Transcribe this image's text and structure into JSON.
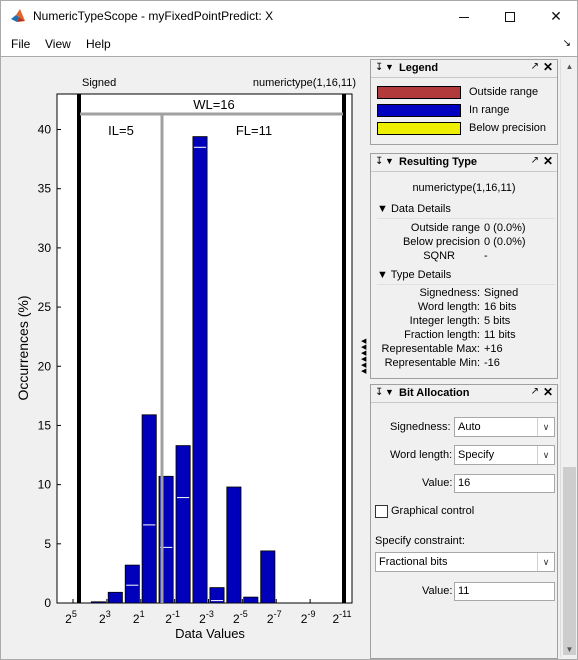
{
  "window": {
    "title": "NumericTypeScope - myFixedPointPredict: X",
    "min_icon": "minimize-icon",
    "max_icon": "maximize-icon",
    "close_glyph": "✕"
  },
  "menu": {
    "file": "File",
    "view": "View",
    "help": "Help"
  },
  "plot": {
    "signed_label": "Signed",
    "type_label": "numerictype(1,16,11)",
    "wl_label": "WL=16",
    "il_label": "IL=5",
    "fl_label": "FL=11",
    "xlabel": "Data Values",
    "ylabel": "Occurrences (%)"
  },
  "chart_data": {
    "type": "bar",
    "xlabel": "Data Values",
    "ylabel": "Occurrences (%)",
    "ylim": [
      0,
      43
    ],
    "yticks": [
      0,
      5,
      10,
      15,
      20,
      25,
      30,
      35,
      40
    ],
    "xtick_labels": [
      {
        "base": "2",
        "exp": "5"
      },
      {
        "base": "2",
        "exp": "3"
      },
      {
        "base": "2",
        "exp": "1"
      },
      {
        "base": "2",
        "exp": "-1"
      },
      {
        "base": "2",
        "exp": "-3"
      },
      {
        "base": "2",
        "exp": "-5"
      },
      {
        "base": "2",
        "exp": "-7"
      },
      {
        "base": "2",
        "exp": "-9"
      },
      {
        "base": "2",
        "exp": "-11"
      }
    ],
    "bin_exponents": [
      4,
      3,
      2,
      1,
      0,
      -1,
      -2,
      -3,
      -4,
      -5,
      -6,
      -7,
      -8,
      -9,
      -10,
      -11
    ],
    "values": [
      0,
      0.1,
      0.9,
      3.2,
      15.9,
      10.7,
      13.3,
      39.4,
      1.3,
      9.8,
      0.5,
      4.4,
      0,
      0,
      0,
      0
    ],
    "inner_marks": [
      null,
      null,
      null,
      1.5,
      6.6,
      4.7,
      8.9,
      38.5,
      0.2,
      null,
      null,
      null,
      null,
      null,
      null,
      null
    ],
    "colors": {
      "in_range": "#0000bb",
      "outside_range": "#b33a3a",
      "below_precision": "#eeee00"
    }
  },
  "legend": {
    "title": "Legend",
    "items": [
      {
        "label": "Outside range",
        "color": "#b33a3a"
      },
      {
        "label": "In range",
        "color": "#0000c0"
      },
      {
        "label": "Below precision",
        "color": "#eeee00"
      }
    ]
  },
  "resulting_type": {
    "title": "Resulting Type",
    "summary": "numerictype(1,16,11)",
    "data_details_title": "Data Details",
    "data_details": [
      {
        "label": "Outside range",
        "value": "0 (0.0%)"
      },
      {
        "label": "Below precision",
        "value": "0 (0.0%)"
      },
      {
        "label": "SQNR",
        "value": "-"
      }
    ],
    "type_details_title": "Type Details",
    "type_details": [
      {
        "label": "Signedness:",
        "value": "Signed"
      },
      {
        "label": "Word length:",
        "value": "16 bits"
      },
      {
        "label": "Integer length:",
        "value": "5 bits"
      },
      {
        "label": "Fraction length:",
        "value": "11 bits"
      },
      {
        "label": "Representable Max:",
        "value": "+16"
      },
      {
        "label": "Representable Min:",
        "value": "-16"
      }
    ]
  },
  "bit_allocation": {
    "title": "Bit Allocation",
    "signedness_label": "Signedness:",
    "signedness_value": "Auto",
    "word_length_label": "Word length:",
    "word_length_value": "Specify",
    "value_label": "Value:",
    "word_length_number": "16",
    "graphical_control_label": "Graphical control",
    "constraint_label": "Specify constraint:",
    "constraint_value": "Fractional bits",
    "constraint_value_label": "Value:",
    "constraint_number": "11"
  }
}
